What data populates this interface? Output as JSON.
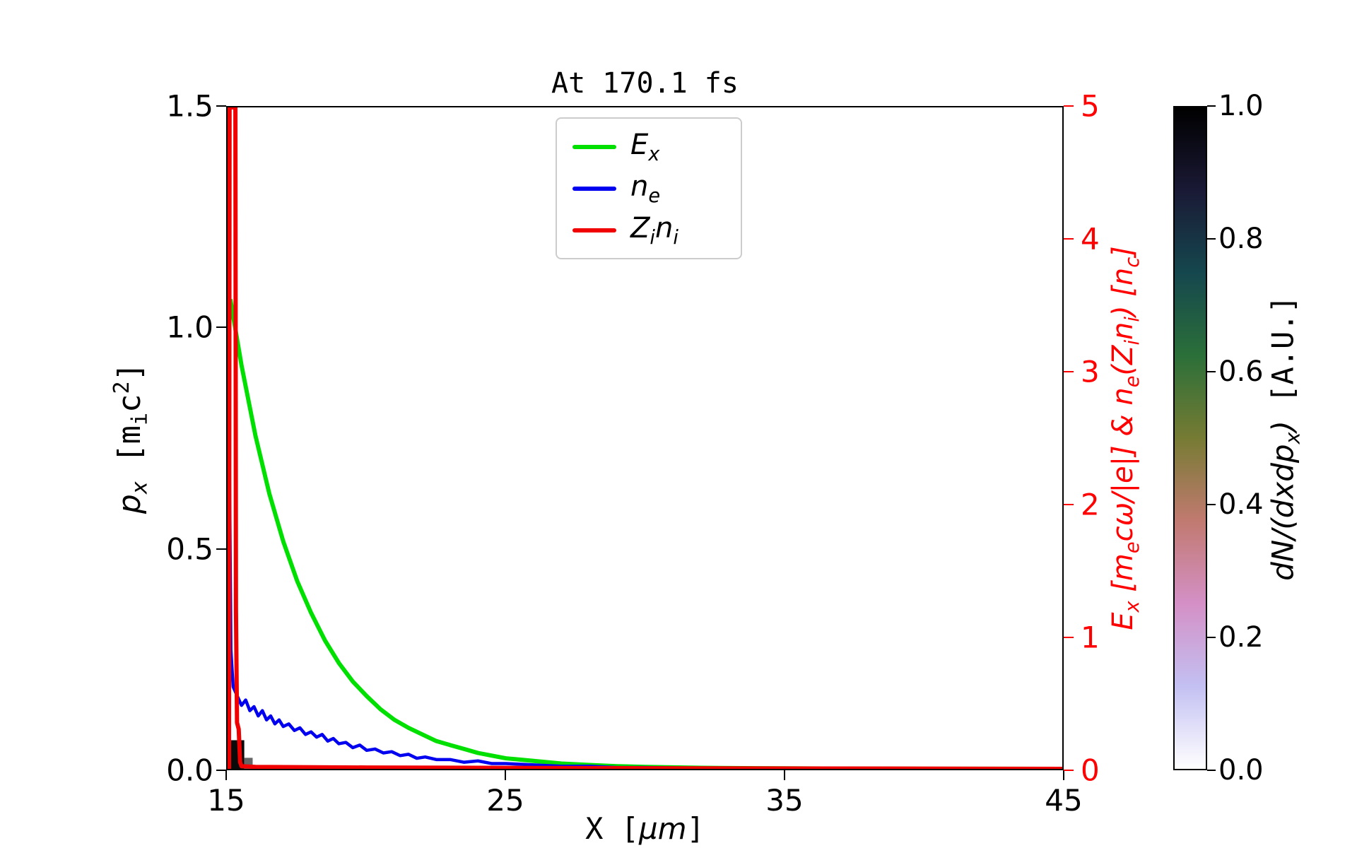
{
  "title": "At 170.1 fs",
  "colors": {
    "axis_red": "#ff0000",
    "frame": "#000000",
    "background": "#ffffff"
  },
  "axes": {
    "x": {
      "label_parts": [
        {
          "t": "X [",
          "s": "mono"
        },
        {
          "t": "μm",
          "s": "math"
        },
        {
          "t": "]",
          "s": "mono"
        }
      ],
      "ticks": [
        "15",
        "25",
        "35",
        "45"
      ],
      "range": [
        15,
        45
      ]
    },
    "y_left": {
      "label_parts": [
        {
          "t": "p_{x}",
          "s": "math"
        },
        {
          "t": " [m_{i}c^{2}]",
          "s": "mono"
        }
      ],
      "ticks": [
        "0.0",
        "0.5",
        "1.0",
        "1.5"
      ],
      "range": [
        0,
        1.5
      ]
    },
    "y_right": {
      "label": "E_{x} [m_{e}cω/|e|] & n_{e}(Z_{i}n_{i}) [n_{c}]",
      "ticks": [
        "0",
        "1",
        "2",
        "3",
        "4",
        "5"
      ],
      "range": [
        0,
        5
      ],
      "color": "#ff0000"
    }
  },
  "legend": [
    {
      "label": "E_{x}",
      "color": "#00e000"
    },
    {
      "label": "n_{e}",
      "color": "#0000f0"
    },
    {
      "label": "Z_{i}n_{i}",
      "color": "#f00000"
    }
  ],
  "colorbar": {
    "label_parts": [
      {
        "t": "dN/(dxdp_{x})",
        "s": "math"
      },
      {
        "t": " [A.U.]",
        "s": "mono"
      }
    ],
    "ticks": [
      "1.0",
      "0.8",
      "0.6",
      "0.4",
      "0.2",
      "0.0"
    ],
    "range": [
      0,
      1
    ],
    "colormap": "cubehelix_r",
    "stops_bottom_to_top": [
      "#ffffff",
      "#c3c0f2",
      "#d490c6",
      "#c17a70",
      "#767b33",
      "#2b6f39",
      "#15474e",
      "#1a1935",
      "#000000"
    ]
  },
  "chart_data": {
    "type": "line",
    "title": "At 170.1 fs",
    "xlabel": "X [μm]",
    "ylabel_left": "p_x [m_i c^2]",
    "ylabel_right": "E_x [m_e cω/|e|] & n_e(Z_i n_i) [n_c]",
    "xlim": [
      15,
      45
    ],
    "ylim_left": [
      0,
      1.5
    ],
    "ylim_right": [
      0,
      5
    ],
    "grid": false,
    "legend_position": "upper center-left inside",
    "series": [
      {
        "name": "Ex",
        "label": "E_x",
        "color": "#00e000",
        "yaxis": "right",
        "x": [
          15.1,
          15.5,
          16.0,
          16.5,
          17.0,
          17.5,
          18.0,
          18.5,
          19.0,
          19.5,
          20.0,
          20.5,
          21.0,
          21.5,
          22.0,
          22.5,
          23.0,
          23.5,
          24.0,
          24.5,
          25.0,
          25.5,
          26.0,
          27.0,
          28.0,
          29.0,
          30.0,
          32.0,
          34.0,
          37.0,
          40.0,
          45.0
        ],
        "values": [
          3.55,
          3.05,
          2.52,
          2.08,
          1.72,
          1.42,
          1.18,
          0.97,
          0.8,
          0.66,
          0.55,
          0.45,
          0.37,
          0.31,
          0.26,
          0.21,
          0.18,
          0.15,
          0.12,
          0.1,
          0.08,
          0.07,
          0.06,
          0.04,
          0.03,
          0.02,
          0.015,
          0.008,
          0.005,
          0.002,
          0.001,
          0.0
        ]
      },
      {
        "name": "ne",
        "label": "n_e",
        "color": "#0000f0",
        "yaxis": "right",
        "x": [
          15.0,
          15.03,
          15.06,
          15.12,
          15.2,
          15.35,
          15.5,
          15.65,
          15.8,
          15.95,
          16.1,
          16.25,
          16.4,
          16.55,
          16.7,
          16.85,
          17.0,
          17.2,
          17.4,
          17.6,
          17.8,
          18.0,
          18.2,
          18.4,
          18.6,
          18.8,
          19.0,
          19.25,
          19.5,
          19.75,
          20.0,
          20.3,
          20.6,
          20.9,
          21.2,
          21.5,
          21.8,
          22.1,
          22.5,
          23.0,
          23.5,
          24.0,
          24.5,
          25.0,
          26.0,
          27.0,
          28.0,
          29.0,
          30.0,
          32.0,
          35.0,
          40.0,
          45.0
        ],
        "values": [
          0.0,
          2.9,
          2.5,
          0.9,
          0.62,
          0.55,
          0.48,
          0.52,
          0.44,
          0.47,
          0.4,
          0.44,
          0.37,
          0.4,
          0.34,
          0.37,
          0.32,
          0.34,
          0.29,
          0.31,
          0.26,
          0.28,
          0.24,
          0.26,
          0.21,
          0.23,
          0.19,
          0.2,
          0.16,
          0.18,
          0.14,
          0.15,
          0.12,
          0.13,
          0.1,
          0.11,
          0.08,
          0.09,
          0.07,
          0.07,
          0.05,
          0.06,
          0.04,
          0.04,
          0.03,
          0.02,
          0.02,
          0.01,
          0.01,
          0.005,
          0.0,
          0.0,
          0.0
        ]
      },
      {
        "name": "Zini",
        "label": "Z_i n_i",
        "color": "#f00000",
        "yaxis": "right",
        "x": [
          15.0,
          15.05,
          15.07,
          15.28,
          15.3,
          15.34,
          15.4,
          15.45,
          15.5,
          16.0,
          20.0,
          30.0,
          45.0
        ],
        "values": [
          0.0,
          0.0,
          5.0,
          5.0,
          1.2,
          0.35,
          0.3,
          0.05,
          0.02,
          0.015,
          0.01,
          0.005,
          0.0
        ]
      }
    ],
    "histogram": {
      "label": "dN/(dxdp_x) [A.U.]",
      "colormap": "cubehelix_r",
      "value_range": [
        0,
        1
      ],
      "yaxis": "left",
      "regions": [
        {
          "x": [
            15.05,
            15.6
          ],
          "px": [
            0,
            0.065
          ],
          "value": 1.0,
          "color": "#0a0a0a"
        },
        {
          "x": [
            15.6,
            15.9
          ],
          "px": [
            0,
            0.025
          ],
          "value": 0.6,
          "color": "#666666"
        }
      ]
    }
  }
}
